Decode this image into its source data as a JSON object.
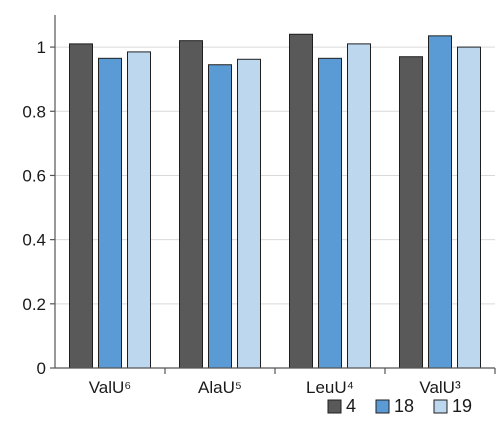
{
  "chart_data": {
    "type": "bar",
    "title": "",
    "xlabel": "",
    "ylabel": "",
    "categories": [
      "ValU⁶",
      "AlaU⁵",
      "LeuU⁴",
      "ValU³"
    ],
    "series": [
      {
        "name": "4",
        "color": "#595959",
        "values": [
          1.01,
          1.02,
          1.04,
          0.97
        ]
      },
      {
        "name": "18",
        "color": "#5b9bd5",
        "values": [
          0.965,
          0.945,
          0.965,
          1.035
        ]
      },
      {
        "name": "19",
        "color": "#bdd7ee",
        "values": [
          0.985,
          0.962,
          1.01,
          1.0
        ]
      }
    ],
    "ylim": [
      0,
      1.1
    ],
    "yticks": [
      0,
      0.2,
      0.4,
      0.6,
      0.8,
      1
    ],
    "ytick_labels": [
      "0",
      "0.2",
      "0.4",
      "0.6",
      "0.8",
      "1"
    ],
    "grid": true,
    "legend_position": "bottom-right"
  }
}
